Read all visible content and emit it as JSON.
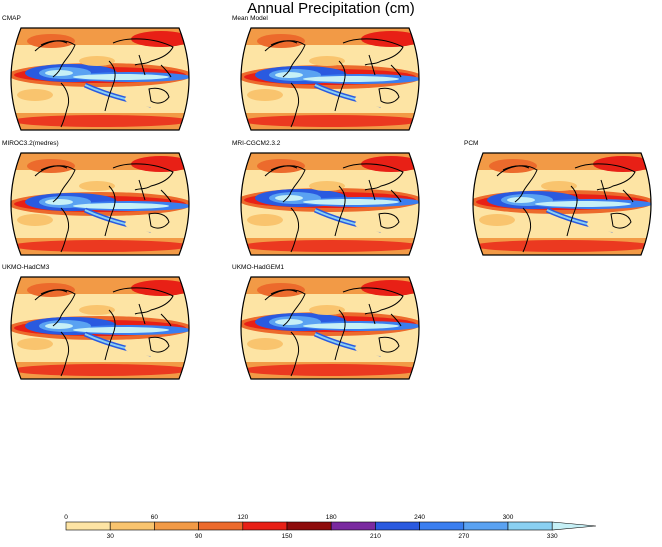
{
  "title": "Annual Precipitation (cm)",
  "panels": [
    {
      "label": "CMAP"
    },
    {
      "label": "Mean Model"
    },
    {
      "label": "MIROC3.2(medres)"
    },
    {
      "label": "MRI-CGCM2.3.2"
    },
    {
      "label": "PCM"
    },
    {
      "label": "UKMO-HadCM3"
    },
    {
      "label": "UKMO-HadGEM1"
    }
  ],
  "colorbar": {
    "colors": [
      "#fde4a4",
      "#f9c46e",
      "#f29a46",
      "#ec6a2c",
      "#e82016",
      "#8e0c0c",
      "#7a2aa0",
      "#2a5ae0",
      "#3a7ef0",
      "#5aa2f2",
      "#8ad0f2",
      "#c6f0f6"
    ],
    "ticks_top": [
      "0",
      "60",
      "120",
      "180",
      "240",
      "300"
    ],
    "ticks_bottom": [
      "30",
      "90",
      "150",
      "210",
      "270",
      "330"
    ]
  }
}
